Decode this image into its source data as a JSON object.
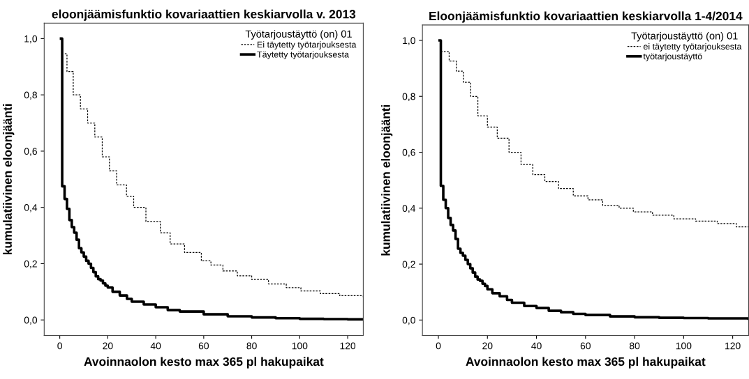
{
  "chart_data": [
    {
      "type": "step",
      "title": "eloonjäämisfunktio kovariaattien keskiarvolla v. 2013",
      "xlabel": "Avoinnaolon kesto max 365 pl hakupaikat",
      "ylabel": "kumulatiivinen eloonjäänti",
      "legend_title": "Työtarjoustäyttö (on) 01",
      "legend": "top right",
      "grid": false,
      "marker": "none",
      "xlim": [
        -6.5,
        126.5
      ],
      "ylim": [
        -0.055,
        1.055
      ],
      "xticks": [
        0,
        20,
        40,
        60,
        80,
        100,
        120
      ],
      "yticks": [
        {
          "value": 0.0,
          "label": "0,0"
        },
        {
          "value": 0.2,
          "label": "0,2"
        },
        {
          "value": 0.4,
          "label": "0,4"
        },
        {
          "value": 0.6,
          "label": "0,6"
        },
        {
          "value": 0.8,
          "label": "0,8"
        },
        {
          "value": 1.0,
          "label": "1,0"
        }
      ],
      "series": [
        {
          "name": "Ei täytetty työtarjouksesta",
          "color": "#000000",
          "line_style": "dashed",
          "x": [
            2.1,
            3,
            5.6,
            8.6,
            11.6,
            14.6,
            17.7,
            20.7,
            23.7,
            27.8,
            30.8,
            35.9,
            41.9,
            46,
            52,
            59,
            63,
            68,
            74,
            80,
            87,
            94.4,
            100.5,
            108.6,
            116.7,
            126.5
          ],
          "values": [
            0.946,
            0.883,
            0.8,
            0.75,
            0.7,
            0.65,
            0.58,
            0.53,
            0.48,
            0.44,
            0.4,
            0.35,
            0.31,
            0.27,
            0.24,
            0.21,
            0.195,
            0.174,
            0.157,
            0.144,
            0.128,
            0.115,
            0.103,
            0.094,
            0.086,
            0.078
          ]
        },
        {
          "name": "Täytetty työtarjouksesta",
          "color": "#000000",
          "line_style": "solid",
          "x": [
            0.5,
            1,
            2,
            3,
            4,
            5,
            6,
            7,
            8,
            9,
            10,
            11,
            12,
            13,
            14,
            15,
            16,
            17,
            18,
            19,
            20,
            22,
            25,
            28,
            30,
            35,
            40,
            45,
            50,
            60,
            70,
            80,
            90,
            100,
            110,
            120,
            126.5
          ],
          "values": [
            1.0,
            0.475,
            0.43,
            0.395,
            0.355,
            0.33,
            0.31,
            0.285,
            0.255,
            0.24,
            0.225,
            0.21,
            0.2,
            0.185,
            0.17,
            0.155,
            0.145,
            0.14,
            0.13,
            0.122,
            0.115,
            0.1,
            0.087,
            0.075,
            0.065,
            0.055,
            0.045,
            0.035,
            0.03,
            0.02,
            0.013,
            0.009,
            0.006,
            0.004,
            0.003,
            0.002,
            0.002
          ]
        }
      ]
    },
    {
      "type": "step",
      "title": "Eloonjäämisfunktio kovariaattien keskiarvolla 1-4/2014",
      "xlabel": "Avoinnaolon kesto max 365 pl hakupaikat",
      "ylabel": "kumulatiivinen eloonjäänti",
      "legend_title": "Työtarjoustäyttö (on) 01",
      "legend": "top right",
      "grid": false,
      "marker": "none",
      "xlim": [
        -6.5,
        126.5
      ],
      "ylim": [
        -0.055,
        1.055
      ],
      "xticks": [
        0,
        20,
        40,
        60,
        80,
        100,
        120
      ],
      "yticks": [
        {
          "value": 0.0,
          "label": "0,0"
        },
        {
          "value": 0.2,
          "label": "0,2"
        },
        {
          "value": 0.4,
          "label": "0,4"
        },
        {
          "value": 0.6,
          "label": "0,6"
        },
        {
          "value": 0.8,
          "label": "0,8"
        },
        {
          "value": 1.0,
          "label": "1,0"
        }
      ],
      "series": [
        {
          "name": "ei täytetty työtarjouksesta",
          "color": "#000000",
          "line_style": "dashed",
          "x": [
            1,
            4.4,
            7.3,
            10.2,
            13.2,
            16.1,
            20,
            24,
            28.8,
            33.7,
            38.5,
            43.4,
            49,
            55,
            61,
            67,
            73.7,
            79.5,
            87.3,
            96,
            104.9,
            113.7,
            121.5,
            126.5
          ],
          "values": [
            0.96,
            0.926,
            0.89,
            0.85,
            0.8,
            0.73,
            0.69,
            0.65,
            0.6,
            0.556,
            0.52,
            0.495,
            0.47,
            0.444,
            0.43,
            0.41,
            0.4,
            0.387,
            0.375,
            0.362,
            0.354,
            0.345,
            0.333,
            0.332
          ]
        },
        {
          "name": "työtarjoustäyttö",
          "color": "#000000",
          "line_style": "solid",
          "x": [
            0.5,
            1,
            2,
            3,
            4,
            5,
            6,
            7,
            8,
            9,
            10,
            11,
            12,
            13,
            14,
            15,
            16,
            17,
            18,
            19,
            20,
            22,
            25,
            28,
            30,
            35,
            40,
            45,
            50,
            55,
            60,
            70,
            80,
            90,
            100,
            110,
            126.5
          ],
          "values": [
            1.0,
            0.48,
            0.43,
            0.4,
            0.365,
            0.34,
            0.32,
            0.29,
            0.255,
            0.24,
            0.23,
            0.215,
            0.2,
            0.185,
            0.17,
            0.155,
            0.145,
            0.14,
            0.13,
            0.122,
            0.11,
            0.096,
            0.085,
            0.072,
            0.062,
            0.05,
            0.043,
            0.033,
            0.028,
            0.022,
            0.018,
            0.013,
            0.01,
            0.008,
            0.007,
            0.006,
            0.005
          ]
        }
      ]
    }
  ]
}
